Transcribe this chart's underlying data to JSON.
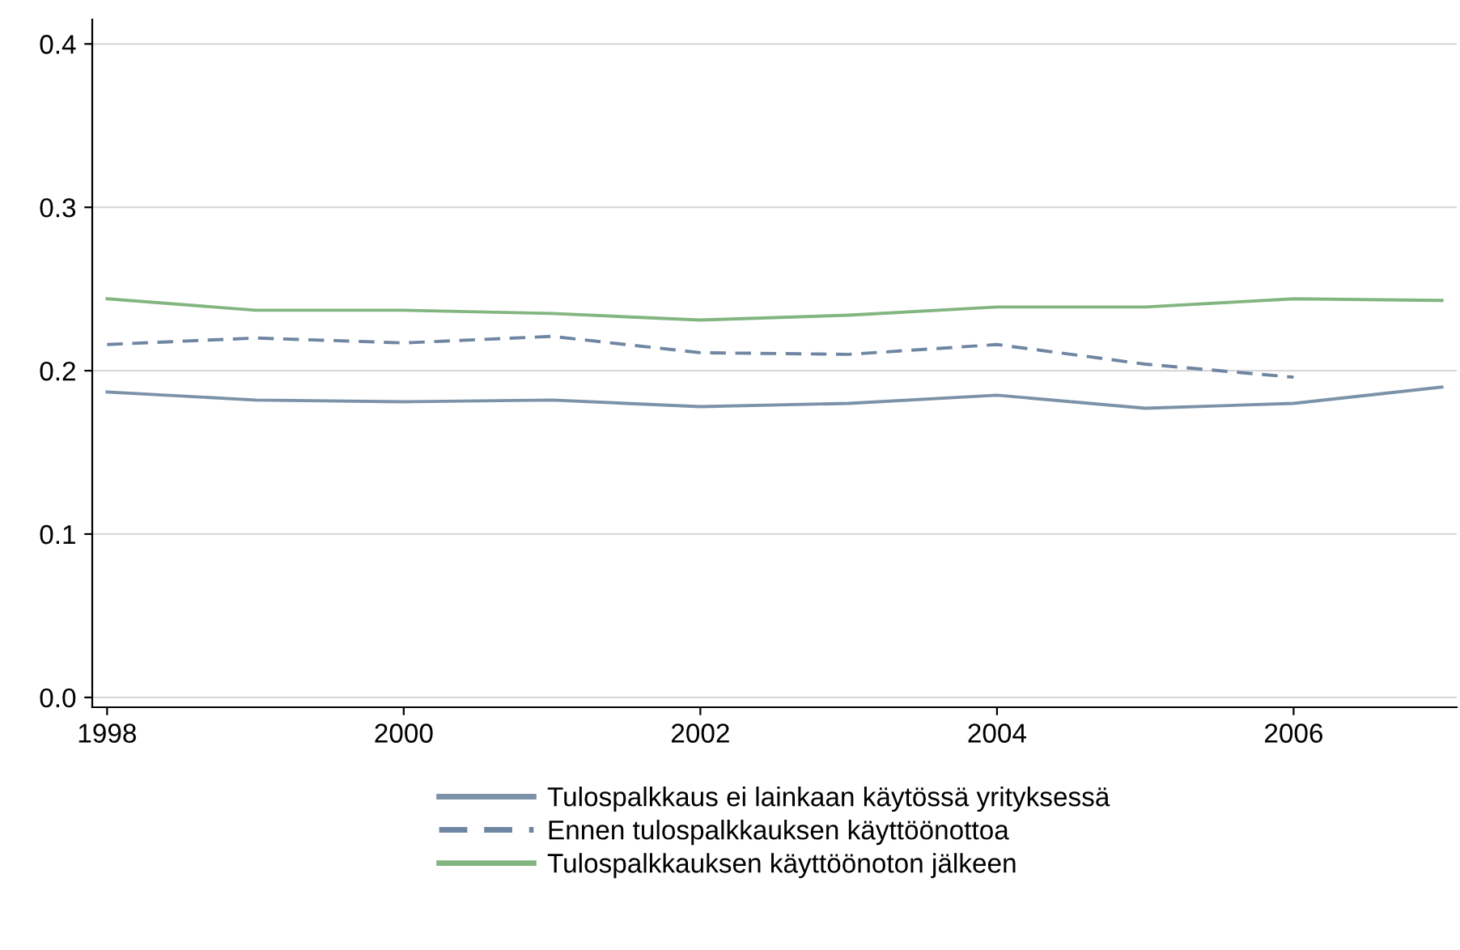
{
  "chart_data": {
    "type": "line",
    "x": [
      1998,
      1999,
      2000,
      2001,
      2002,
      2003,
      2004,
      2005,
      2006,
      2007
    ],
    "series": [
      {
        "name": "Tulospalkkaus ei lainkaan käytössä yrityksessä",
        "color": "#7b92a8",
        "line_style": "solid",
        "values": [
          0.187,
          0.182,
          0.181,
          0.182,
          0.178,
          0.18,
          0.185,
          0.177,
          0.18,
          0.19
        ]
      },
      {
        "name": "Ennen tulospalkkauksen käyttöönottoa",
        "color": "#6f86a2",
        "line_style": "dashed",
        "values": [
          0.216,
          0.22,
          0.217,
          0.221,
          0.211,
          0.21,
          0.216,
          0.204,
          0.196,
          null
        ]
      },
      {
        "name": "Tulospalkkauksen käyttöönoton jälkeen",
        "color": "#82b580",
        "line_style": "solid",
        "values": [
          0.244,
          0.237,
          0.237,
          0.235,
          0.231,
          0.234,
          0.239,
          0.239,
          0.244,
          0.243
        ]
      }
    ],
    "xlim": [
      1997.9,
      2007.1
    ],
    "xticks": [
      1998,
      2000,
      2002,
      2004,
      2006
    ],
    "ylim": [
      -0.006,
      0.415
    ],
    "yticks": [
      {
        "value": 0,
        "label": "0.0"
      },
      0.1,
      0.2,
      0.3,
      0.4
    ],
    "grid": "y",
    "legend": "bottom",
    "marker": "none"
  }
}
